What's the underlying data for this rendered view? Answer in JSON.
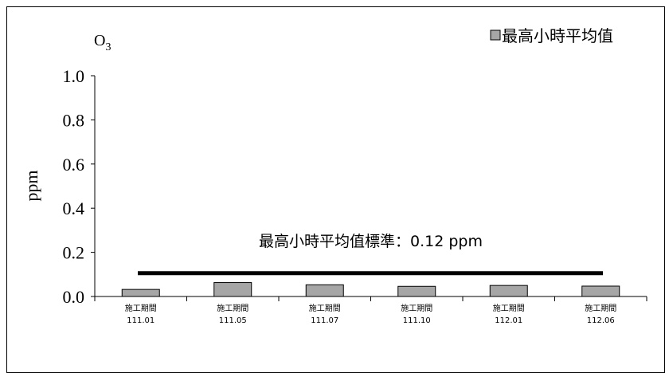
{
  "chart_data": {
    "type": "bar",
    "title": "O",
    "title_subscript": "3",
    "ylabel": "ppm",
    "xlabel": "",
    "ylim": [
      0,
      1.0
    ],
    "yticks": [
      "0.0",
      "0.2",
      "0.4",
      "0.6",
      "0.8",
      "1.0"
    ],
    "categories": [
      {
        "line1": "施工期間",
        "line2": "111.01"
      },
      {
        "line1": "施工期間",
        "line2": "111.05"
      },
      {
        "line1": "施工期間",
        "line2": "111.07"
      },
      {
        "line1": "施工期間",
        "line2": "111.10"
      },
      {
        "line1": "施工期間",
        "line2": "112.01"
      },
      {
        "line1": "施工期間",
        "line2": "112.06"
      }
    ],
    "series": [
      {
        "name": "最高小時平均值",
        "values": [
          0.032,
          0.063,
          0.053,
          0.046,
          0.05,
          0.047
        ],
        "color": "#a6a6a6"
      }
    ],
    "standard": {
      "value": 0.12,
      "label": "最高小時平均值標準：0.12 ppm"
    },
    "legend_position": "top-right",
    "grid": false
  }
}
